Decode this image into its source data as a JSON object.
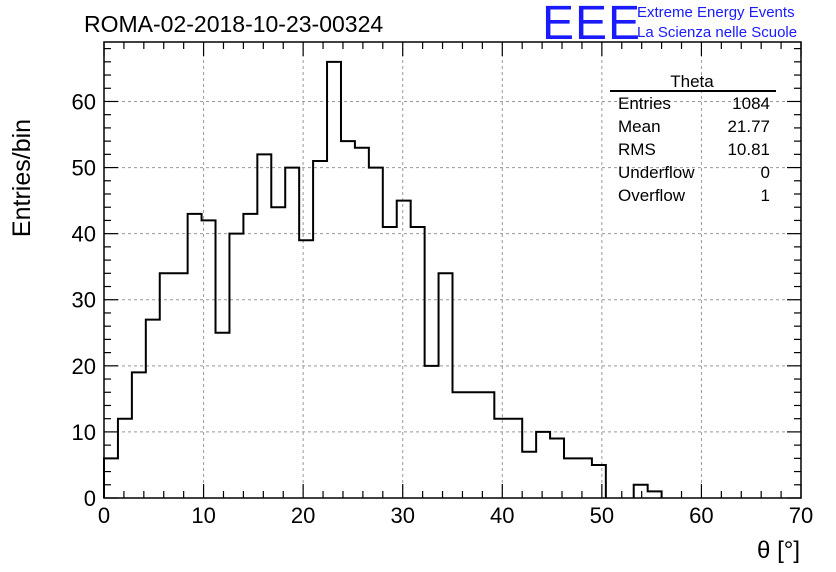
{
  "header": {
    "run_title": "ROMA-02-2018-10-23-00324",
    "logo_letters": "EEE",
    "logo_line1": "Extreme Energy Events",
    "logo_line2": "La Scienza nelle Scuole",
    "logo_color": "#1a1aff"
  },
  "stats_box": {
    "title": "Theta",
    "rows": [
      {
        "label": "Entries",
        "value": "1084"
      },
      {
        "label": "Mean",
        "value": "21.77"
      },
      {
        "label": "RMS",
        "value": "10.81"
      },
      {
        "label": "Underflow",
        "value": "0"
      },
      {
        "label": "Overflow",
        "value": "1"
      }
    ]
  },
  "chart_data": {
    "type": "bar",
    "histogram": true,
    "xlabel": "θ [°]",
    "ylabel": "Entries/bin",
    "xlim": [
      0,
      70
    ],
    "ylim": [
      0,
      69
    ],
    "xticks": [
      0,
      10,
      20,
      30,
      40,
      50,
      60,
      70
    ],
    "yticks": [
      0,
      10,
      20,
      30,
      40,
      50,
      60
    ],
    "grid": true,
    "bin_width": 1.4,
    "bin_edges_start": 0,
    "values": [
      6,
      12,
      19,
      27,
      34,
      34,
      43,
      42,
      25,
      40,
      43,
      52,
      44,
      50,
      39,
      51,
      66,
      54,
      53,
      50,
      41,
      45,
      41,
      20,
      34,
      16,
      16,
      16,
      12,
      12,
      7,
      10,
      9,
      6,
      6,
      5,
      0,
      0,
      2,
      1,
      0,
      0,
      0,
      0,
      0,
      0,
      0,
      0,
      0,
      0
    ],
    "line_color": "#000000"
  }
}
